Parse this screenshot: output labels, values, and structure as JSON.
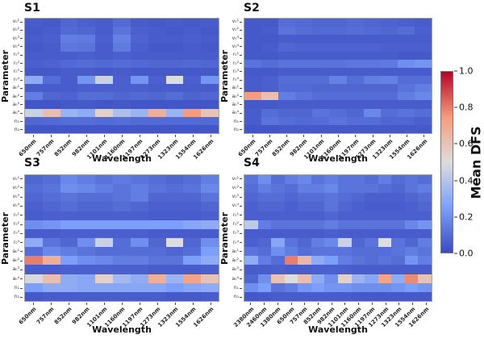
{
  "axis": {
    "x_label": "Wavelength",
    "y_label": "Parameter"
  },
  "colorbar": {
    "label": "Mean DFS",
    "ticks": [
      "1.0",
      "0.8",
      "0.6",
      "0.4",
      "0.2",
      "0.0"
    ],
    "min": 0.0,
    "max": 1.0,
    "colormap": "coolwarm",
    "gradient": [
      "#3b4cc0",
      "#7c9ff9",
      "#dddddd",
      "#f59c7d",
      "#b40426"
    ]
  },
  "parameter_labels": [
    "v₀¹",
    "v₀²",
    "v₀³",
    "v₀⁴",
    "r₀¹",
    "r₀²",
    "r₀³",
    "r₀⁴",
    "a₀¹",
    "a₀²",
    "a₀³",
    "a₀⁴",
    "n₁",
    "n₂"
  ],
  "chart_data": [
    {
      "type": "heatmap",
      "title": "S1",
      "xlabel": "Wavelength",
      "ylabel": "Parameter",
      "colormap": "coolwarm",
      "vmin": 0.0,
      "vmax": 1.0,
      "x": [
        "650nm",
        "757nm",
        "852nm",
        "982nm",
        "1101nm",
        "1160nm",
        "1197nm",
        "1273nm",
        "1323nm",
        "1554nm",
        "1626nm"
      ],
      "y": [
        "v₀¹",
        "v₀²",
        "v₀³",
        "v₀⁴",
        "r₀¹",
        "r₀²",
        "r₀³",
        "r₀⁴",
        "a₀¹",
        "a₀²",
        "a₀³",
        "a₀⁴",
        "n₁",
        "n₂"
      ],
      "values": [
        [
          0.05,
          0.04,
          0.08,
          0.06,
          0.05,
          0.09,
          0.05,
          0.04,
          0.05,
          0.04,
          0.05
        ],
        [
          0.04,
          0.05,
          0.09,
          0.08,
          0.05,
          0.12,
          0.06,
          0.05,
          0.04,
          0.05,
          0.04
        ],
        [
          0.05,
          0.06,
          0.15,
          0.14,
          0.06,
          0.16,
          0.07,
          0.05,
          0.05,
          0.06,
          0.05
        ],
        [
          0.04,
          0.05,
          0.13,
          0.12,
          0.05,
          0.14,
          0.06,
          0.04,
          0.04,
          0.05,
          0.04
        ],
        [
          0.05,
          0.05,
          0.05,
          0.06,
          0.05,
          0.06,
          0.05,
          0.05,
          0.05,
          0.05,
          0.05
        ],
        [
          0.06,
          0.07,
          0.09,
          0.1,
          0.09,
          0.1,
          0.09,
          0.08,
          0.08,
          0.09,
          0.08
        ],
        [
          0.04,
          0.04,
          0.05,
          0.05,
          0.04,
          0.05,
          0.04,
          0.04,
          0.04,
          0.04,
          0.04
        ],
        [
          0.3,
          0.1,
          0.05,
          0.22,
          0.45,
          0.06,
          0.22,
          0.06,
          0.5,
          0.06,
          0.22
        ],
        [
          0.05,
          0.05,
          0.05,
          0.06,
          0.06,
          0.06,
          0.06,
          0.05,
          0.05,
          0.05,
          0.05
        ],
        [
          0.15,
          0.08,
          0.07,
          0.1,
          0.1,
          0.08,
          0.09,
          0.08,
          0.1,
          0.07,
          0.08
        ],
        [
          0.03,
          0.03,
          0.04,
          0.04,
          0.03,
          0.04,
          0.03,
          0.03,
          0.03,
          0.03,
          0.03
        ],
        [
          0.45,
          0.62,
          0.33,
          0.3,
          0.55,
          0.38,
          0.33,
          0.68,
          0.33,
          0.75,
          0.6
        ],
        [
          0.08,
          0.09,
          0.1,
          0.1,
          0.09,
          0.1,
          0.09,
          0.09,
          0.09,
          0.09,
          0.09
        ],
        [
          0.03,
          0.03,
          0.03,
          0.03,
          0.03,
          0.03,
          0.03,
          0.03,
          0.03,
          0.03,
          0.03
        ]
      ]
    },
    {
      "type": "heatmap",
      "title": "S2",
      "xlabel": "Wavelength",
      "ylabel": "Parameter",
      "colormap": "coolwarm",
      "vmin": 0.0,
      "vmax": 1.0,
      "x": [
        "650nm",
        "757nm",
        "852nm",
        "982nm",
        "1101nm",
        "1160nm",
        "1197nm",
        "1273nm",
        "1323nm",
        "1554nm",
        "1626nm"
      ],
      "y": [
        "v₀¹",
        "v₀²",
        "v₀³",
        "v₀⁴",
        "r₀¹",
        "r₀²",
        "r₀³",
        "r₀⁴",
        "a₀¹",
        "a₀²",
        "a₀³",
        "a₀⁴",
        "n₁",
        "n₂"
      ],
      "values": [
        [
          0.04,
          0.04,
          0.1,
          0.09,
          0.08,
          0.08,
          0.09,
          0.08,
          0.07,
          0.06,
          0.05
        ],
        [
          0.04,
          0.05,
          0.12,
          0.1,
          0.09,
          0.09,
          0.1,
          0.09,
          0.08,
          0.1,
          0.06
        ],
        [
          0.04,
          0.04,
          0.05,
          0.05,
          0.05,
          0.05,
          0.05,
          0.05,
          0.05,
          0.05,
          0.05
        ],
        [
          0.04,
          0.05,
          0.08,
          0.07,
          0.07,
          0.07,
          0.07,
          0.07,
          0.06,
          0.06,
          0.06
        ],
        [
          0.04,
          0.04,
          0.05,
          0.05,
          0.05,
          0.05,
          0.05,
          0.05,
          0.05,
          0.04,
          0.04
        ],
        [
          0.12,
          0.1,
          0.12,
          0.12,
          0.12,
          0.12,
          0.13,
          0.13,
          0.14,
          0.2,
          0.22
        ],
        [
          0.04,
          0.04,
          0.05,
          0.05,
          0.05,
          0.05,
          0.05,
          0.05,
          0.05,
          0.05,
          0.05
        ],
        [
          0.05,
          0.06,
          0.1,
          0.1,
          0.1,
          0.16,
          0.1,
          0.15,
          0.16,
          0.1,
          0.1
        ],
        [
          0.05,
          0.06,
          0.09,
          0.09,
          0.08,
          0.08,
          0.08,
          0.08,
          0.08,
          0.12,
          0.15
        ],
        [
          0.75,
          0.62,
          0.15,
          0.12,
          0.1,
          0.1,
          0.1,
          0.1,
          0.1,
          0.15,
          0.18
        ],
        [
          0.04,
          0.04,
          0.05,
          0.05,
          0.05,
          0.05,
          0.05,
          0.05,
          0.05,
          0.05,
          0.05
        ],
        [
          0.05,
          0.1,
          0.08,
          0.08,
          0.12,
          0.1,
          0.08,
          0.18,
          0.1,
          0.12,
          0.1
        ],
        [
          0.05,
          0.12,
          0.1,
          0.09,
          0.1,
          0.12,
          0.1,
          0.1,
          0.08,
          0.08,
          0.06
        ],
        [
          0.03,
          0.03,
          0.04,
          0.04,
          0.04,
          0.04,
          0.04,
          0.04,
          0.04,
          0.04,
          0.04
        ]
      ]
    },
    {
      "type": "heatmap",
      "title": "S3",
      "xlabel": "Wavelength",
      "ylabel": "Parameter",
      "colormap": "coolwarm",
      "vmin": 0.0,
      "vmax": 1.0,
      "x": [
        "650nm",
        "757nm",
        "852nm",
        "982nm",
        "1101nm",
        "1160nm",
        "1197nm",
        "1273nm",
        "1323nm",
        "1554nm",
        "1626nm"
      ],
      "y": [
        "v₀¹",
        "v₀²",
        "v₀³",
        "v₀⁴",
        "r₀¹",
        "r₀²",
        "r₀³",
        "r₀⁴",
        "a₀¹",
        "a₀²",
        "a₀³",
        "a₀⁴",
        "n₁",
        "n₂"
      ],
      "values": [
        [
          0.08,
          0.1,
          0.18,
          0.15,
          0.12,
          0.14,
          0.12,
          0.1,
          0.08,
          0.1,
          0.15
        ],
        [
          0.1,
          0.12,
          0.2,
          0.18,
          0.15,
          0.12,
          0.15,
          0.12,
          0.1,
          0.12,
          0.18
        ],
        [
          0.08,
          0.1,
          0.12,
          0.1,
          0.1,
          0.12,
          0.15,
          0.08,
          0.08,
          0.08,
          0.12
        ],
        [
          0.06,
          0.08,
          0.1,
          0.08,
          0.08,
          0.1,
          0.08,
          0.06,
          0.06,
          0.06,
          0.08
        ],
        [
          0.05,
          0.06,
          0.06,
          0.06,
          0.06,
          0.06,
          0.06,
          0.05,
          0.05,
          0.05,
          0.06
        ],
        [
          0.2,
          0.22,
          0.25,
          0.25,
          0.25,
          0.25,
          0.25,
          0.25,
          0.25,
          0.28,
          0.3
        ],
        [
          0.05,
          0.05,
          0.06,
          0.06,
          0.06,
          0.06,
          0.06,
          0.05,
          0.05,
          0.05,
          0.05
        ],
        [
          0.3,
          0.12,
          0.08,
          0.2,
          0.45,
          0.1,
          0.2,
          0.08,
          0.5,
          0.08,
          0.2
        ],
        [
          0.1,
          0.18,
          0.15,
          0.12,
          0.1,
          0.1,
          0.1,
          0.1,
          0.08,
          0.1,
          0.25
        ],
        [
          0.8,
          0.68,
          0.25,
          0.2,
          0.18,
          0.15,
          0.15,
          0.12,
          0.12,
          0.25,
          0.3
        ],
        [
          0.05,
          0.05,
          0.06,
          0.06,
          0.06,
          0.06,
          0.06,
          0.05,
          0.05,
          0.05,
          0.06
        ],
        [
          0.48,
          0.62,
          0.3,
          0.28,
          0.55,
          0.35,
          0.3,
          0.68,
          0.33,
          0.72,
          0.6
        ],
        [
          0.25,
          0.3,
          0.3,
          0.28,
          0.28,
          0.28,
          0.28,
          0.28,
          0.25,
          0.28,
          0.3
        ],
        [
          0.04,
          0.05,
          0.05,
          0.05,
          0.05,
          0.05,
          0.05,
          0.05,
          0.04,
          0.04,
          0.05
        ]
      ]
    },
    {
      "type": "heatmap",
      "title": "S4",
      "xlabel": "Wavelength",
      "ylabel": "Parameter",
      "colormap": "coolwarm",
      "vmin": 0.0,
      "vmax": 1.0,
      "x": [
        "2380nm",
        "2460nm",
        "1380nm",
        "650nm",
        "757nm",
        "852nm",
        "982nm",
        "1101nm",
        "1160nm",
        "1197nm",
        "1273nm",
        "1323nm",
        "1554nm",
        "1626nm"
      ],
      "y": [
        "v₀¹",
        "v₀²",
        "v₀³",
        "v₀⁴",
        "r₀¹",
        "r₀²",
        "r₀³",
        "r₀⁴",
        "a₀¹",
        "a₀²",
        "a₀³",
        "a₀⁴",
        "n₁",
        "n₂"
      ],
      "values": [
        [
          0.12,
          0.2,
          0.1,
          0.15,
          0.18,
          0.12,
          0.15,
          0.12,
          0.12,
          0.1,
          0.15,
          0.1,
          0.12,
          0.1
        ],
        [
          0.1,
          0.15,
          0.12,
          0.1,
          0.15,
          0.15,
          0.18,
          0.12,
          0.12,
          0.12,
          0.1,
          0.08,
          0.12,
          0.15
        ],
        [
          0.08,
          0.1,
          0.1,
          0.08,
          0.1,
          0.1,
          0.12,
          0.1,
          0.08,
          0.06,
          0.06,
          0.06,
          0.08,
          0.1
        ],
        [
          0.06,
          0.08,
          0.08,
          0.06,
          0.08,
          0.08,
          0.12,
          0.08,
          0.06,
          0.05,
          0.05,
          0.05,
          0.06,
          0.08
        ],
        [
          0.06,
          0.06,
          0.06,
          0.06,
          0.06,
          0.06,
          0.08,
          0.06,
          0.06,
          0.06,
          0.06,
          0.06,
          0.06,
          0.06
        ],
        [
          0.42,
          0.15,
          0.12,
          0.12,
          0.12,
          0.12,
          0.15,
          0.12,
          0.12,
          0.12,
          0.12,
          0.12,
          0.18,
          0.22
        ],
        [
          0.05,
          0.05,
          0.05,
          0.05,
          0.05,
          0.05,
          0.06,
          0.05,
          0.05,
          0.05,
          0.05,
          0.05,
          0.05,
          0.05
        ],
        [
          0.06,
          0.08,
          0.28,
          0.12,
          0.08,
          0.15,
          0.18,
          0.45,
          0.08,
          0.12,
          0.5,
          0.12,
          0.08,
          0.15
        ],
        [
          0.12,
          0.1,
          0.2,
          0.15,
          0.1,
          0.12,
          0.12,
          0.12,
          0.1,
          0.1,
          0.1,
          0.12,
          0.15,
          0.12
        ],
        [
          0.3,
          0.15,
          0.1,
          0.8,
          0.65,
          0.3,
          0.25,
          0.15,
          0.12,
          0.1,
          0.12,
          0.1,
          0.22,
          0.15
        ],
        [
          0.05,
          0.05,
          0.06,
          0.05,
          0.05,
          0.06,
          0.06,
          0.06,
          0.05,
          0.05,
          0.05,
          0.05,
          0.05,
          0.05
        ],
        [
          0.08,
          0.2,
          0.6,
          0.5,
          0.62,
          0.3,
          0.2,
          0.55,
          0.33,
          0.28,
          0.72,
          0.3,
          0.78,
          0.6
        ],
        [
          0.2,
          0.25,
          0.12,
          0.15,
          0.22,
          0.25,
          0.22,
          0.22,
          0.2,
          0.2,
          0.2,
          0.22,
          0.25,
          0.22
        ],
        [
          0.04,
          0.04,
          0.05,
          0.05,
          0.05,
          0.05,
          0.05,
          0.05,
          0.04,
          0.04,
          0.04,
          0.04,
          0.04,
          0.04
        ]
      ]
    }
  ]
}
